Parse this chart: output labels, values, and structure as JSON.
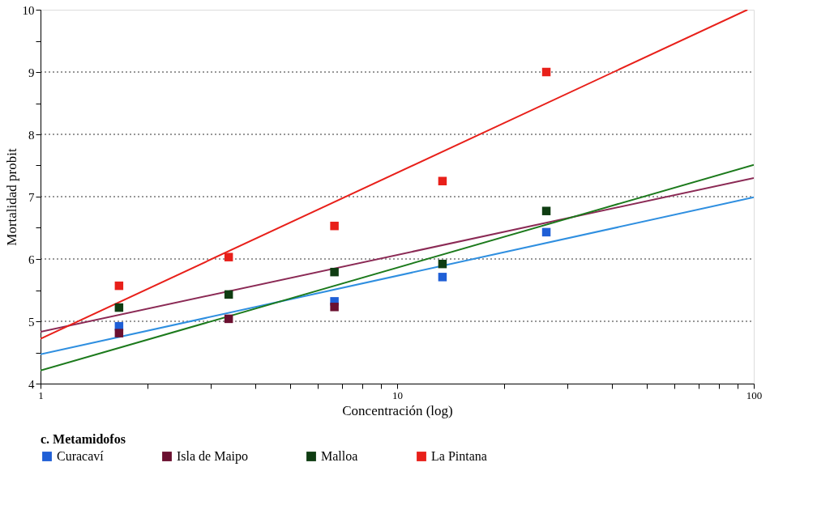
{
  "chart_data": {
    "type": "scatter",
    "xlabel": "Concentración (log)",
    "ylabel": "Mortalidad probit",
    "legend_title": "c. Metamidofos",
    "x": [
      1.66,
      3.37,
      6.67,
      13.4,
      26.2
    ],
    "series": [
      {
        "name": "Curacaví",
        "color": "#1f5fd6",
        "values": [
          4.92,
          null,
          5.32,
          5.71,
          6.43
        ]
      },
      {
        "name": "Isla de Maipo",
        "color": "#6b1030",
        "values": [
          4.81,
          5.04,
          5.23,
          null,
          null
        ]
      },
      {
        "name": "Malloa",
        "color": "#0f3d12",
        "values": [
          5.22,
          5.43,
          5.79,
          5.92,
          6.77
        ]
      },
      {
        "name": "La Pintana",
        "color": "#e8201a",
        "values": [
          5.57,
          6.03,
          6.53,
          7.25,
          9.0
        ]
      },
      {
        "type": "line",
        "marker": "none",
        "color": "#2f8fe0",
        "x": [
          1,
          100
        ],
        "values": [
          4.47,
          6.99
        ]
      },
      {
        "type": "line",
        "marker": "none",
        "color": "#8b2a55",
        "x": [
          1,
          100
        ],
        "values": [
          4.83,
          7.3
        ]
      },
      {
        "type": "line",
        "marker": "none",
        "color": "#1c7a1c",
        "x": [
          1,
          100
        ],
        "values": [
          4.21,
          7.51
        ]
      },
      {
        "type": "line",
        "marker": "none",
        "color": "#e8201a",
        "x": [
          1,
          96
        ],
        "values": [
          4.72,
          10.0
        ]
      }
    ],
    "log": "x",
    "xlim": [
      1,
      100
    ],
    "xticks": [
      1,
      {
        "value": 2,
        "label": null
      },
      {
        "value": 3,
        "label": null
      },
      {
        "value": 4,
        "label": null
      },
      {
        "value": 5,
        "label": null
      },
      {
        "value": 6,
        "label": null
      },
      {
        "value": 7,
        "label": null
      },
      {
        "value": 8,
        "label": null
      },
      {
        "value": 9,
        "label": null
      },
      10,
      {
        "value": 20,
        "label": null
      },
      {
        "value": 30,
        "label": null
      },
      {
        "value": 40,
        "label": null
      },
      {
        "value": 50,
        "label": null
      },
      {
        "value": 60,
        "label": null
      },
      {
        "value": 70,
        "label": null
      },
      {
        "value": 80,
        "label": null
      },
      {
        "value": 90,
        "label": null
      },
      100
    ],
    "ylim": [
      4,
      10
    ],
    "yticks": [
      4,
      {
        "value": 4.5,
        "label": null
      },
      5,
      {
        "value": 5.5,
        "label": null
      },
      6,
      {
        "value": 6.5,
        "label": null
      },
      7,
      {
        "value": 7.5,
        "label": null
      },
      8,
      {
        "value": 8.5,
        "label": null
      },
      9,
      {
        "value": 9.5,
        "label": null
      },
      10
    ],
    "grid": "y",
    "legend": "bottom",
    "marker": "square",
    "line_style": "solid"
  }
}
